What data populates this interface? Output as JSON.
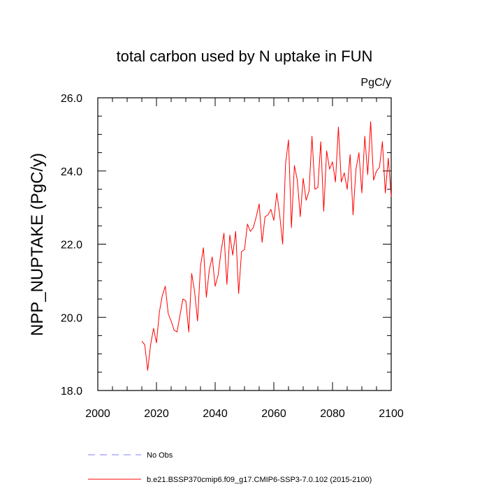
{
  "chart_data": {
    "type": "line",
    "title": "total carbon used by N uptake in FUN",
    "units": "PgC/y",
    "ylabel": "NPP_NUPTAKE  (PgC/y)",
    "xlabel": "",
    "xlim": [
      2000,
      2100
    ],
    "ylim": [
      18,
      26
    ],
    "x_ticks": [
      2000,
      2020,
      2040,
      2060,
      2080,
      2100
    ],
    "x_tick_labels": [
      "2000",
      "2020",
      "2040",
      "2060",
      "2080",
      "2100"
    ],
    "y_ticks": [
      18,
      20,
      22,
      24,
      26
    ],
    "y_tick_labels": [
      "18.0",
      "20.0",
      "22.0",
      "24.0",
      "26.0"
    ],
    "grid": false,
    "legend_position": "bottom",
    "legend": [
      {
        "label": "No Obs",
        "color": "#8080ff",
        "style": "dashed"
      },
      {
        "label": "b.e21.BSSP370cmip6.f09_g17.CMIP6-SSP3-7.0.102 (2015-2100)",
        "color": "#ff0000",
        "style": "solid"
      }
    ],
    "series": [
      {
        "name": "b.e21.BSSP370cmip6.f09_g17.CMIP6-SSP3-7.0.102 (2015-2100)",
        "color": "#ff0000",
        "x": [
          2015,
          2016,
          2017,
          2018,
          2019,
          2020,
          2021,
          2022,
          2023,
          2024,
          2025,
          2026,
          2027,
          2028,
          2029,
          2030,
          2031,
          2032,
          2033,
          2034,
          2035,
          2036,
          2037,
          2038,
          2039,
          2040,
          2041,
          2042,
          2043,
          2044,
          2045,
          2046,
          2047,
          2048,
          2049,
          2050,
          2051,
          2052,
          2053,
          2054,
          2055,
          2056,
          2057,
          2058,
          2059,
          2060,
          2061,
          2062,
          2063,
          2064,
          2065,
          2066,
          2067,
          2068,
          2069,
          2070,
          2071,
          2072,
          2073,
          2074,
          2075,
          2076,
          2077,
          2078,
          2079,
          2080,
          2081,
          2082,
          2083,
          2084,
          2085,
          2086,
          2087,
          2088,
          2089,
          2090,
          2091,
          2092,
          2093,
          2094,
          2095,
          2096,
          2097,
          2098,
          2099,
          2100
        ],
        "values": [
          19.35,
          19.25,
          18.55,
          19.25,
          19.7,
          19.3,
          20.15,
          20.6,
          20.85,
          20.1,
          19.9,
          19.65,
          19.6,
          20.05,
          20.5,
          20.45,
          19.6,
          21.2,
          20.7,
          19.9,
          21.4,
          21.9,
          20.55,
          21.3,
          21.65,
          20.85,
          21.15,
          21.8,
          22.3,
          20.9,
          22.25,
          21.7,
          22.35,
          20.65,
          21.8,
          21.85,
          22.55,
          22.35,
          22.45,
          22.75,
          23.1,
          22.05,
          22.75,
          22.8,
          22.95,
          22.65,
          23.4,
          22.8,
          22.0,
          24.2,
          24.85,
          22.45,
          24.15,
          23.75,
          22.75,
          23.8,
          23.2,
          23.45,
          24.95,
          23.5,
          23.55,
          24.8,
          22.9,
          24.55,
          24.05,
          24.25,
          23.7,
          25.2,
          23.7,
          23.95,
          23.5,
          24.45,
          22.8,
          24.05,
          24.5,
          23.4,
          24.95,
          23.9,
          25.35,
          23.75,
          24.0,
          24.1,
          24.8,
          23.4,
          24.35,
          23.3
        ]
      }
    ]
  }
}
